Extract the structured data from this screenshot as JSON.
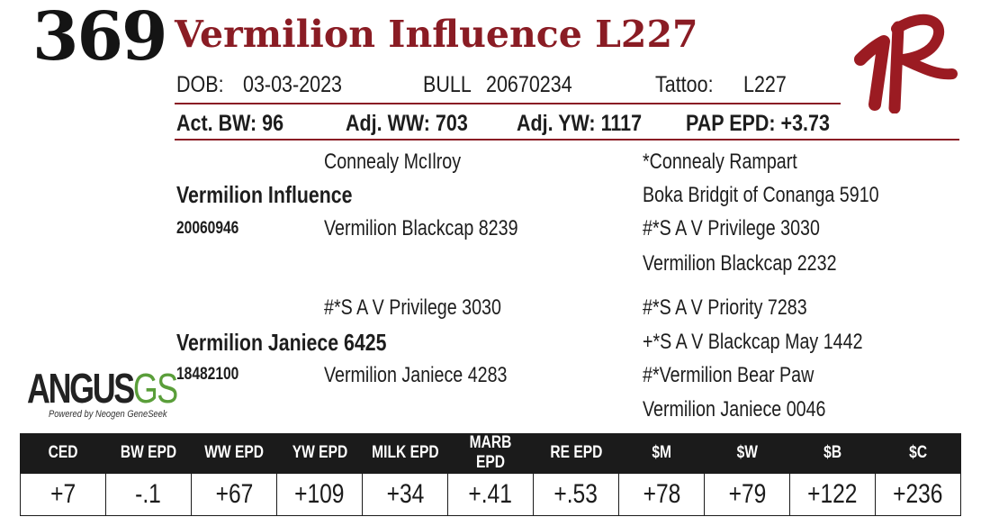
{
  "lot_number": "369",
  "animal_name": "Vermilion Influence L227",
  "details": {
    "dob_label": "DOB:",
    "dob": "03-03-2023",
    "sex": "BULL",
    "registration": "20670234",
    "tattoo_label": "Tattoo:",
    "tattoo": "L227"
  },
  "performance": {
    "act_bw": "Act. BW: 96",
    "adj_ww": "Adj. WW: 703",
    "adj_yw": "Adj. YW: 1117",
    "pap_epd": "PAP EPD: +3.73"
  },
  "pedigree": {
    "sire": "Vermilion Influence",
    "sire_reg": "20060946",
    "sire_sire": "Connealy McIlroy",
    "sire_dam": "Vermilion Blackcap 8239",
    "sire_sire_sire": "*Connealy Rampart",
    "sire_sire_dam": "Boka Bridgit of Conanga 5910",
    "sire_dam_sire": "#*S A V Privilege 3030",
    "sire_dam_dam": "Vermilion Blackcap 2232",
    "dam": "Vermilion Janiece 6425",
    "dam_reg": "18482100",
    "dam_sire": "#*S A V Privilege 3030",
    "dam_dam": "Vermilion Janiece 4283",
    "dam_sire_sire": "#*S A V Priority 7283",
    "dam_sire_dam": "+*S A V Blackcap May 1442",
    "dam_dam_sire": "#*Vermilion Bear Paw",
    "dam_dam_dam": "Vermilion Janiece 0046"
  },
  "logo": {
    "main": "ANGUS",
    "accent": "GS",
    "subtitle": "Powered by Neogen GeneSeek"
  },
  "epd": {
    "headers": [
      "CED",
      "BW EPD",
      "WW EPD",
      "YW EPD",
      "MILK EPD",
      "MARB EPD",
      "RE EPD",
      "$M",
      "$W",
      "$B",
      "$C"
    ],
    "values": [
      "+7",
      "-.1",
      "+67",
      "+109",
      "+34",
      "+.41",
      "+.53",
      "+78",
      "+79",
      "+122",
      "+236"
    ]
  },
  "colors": {
    "accent": "#8a1c24",
    "brand_mark": "#9b1b22",
    "logo_green": "#5a9e3a",
    "table_header": "#1b1b1b"
  }
}
